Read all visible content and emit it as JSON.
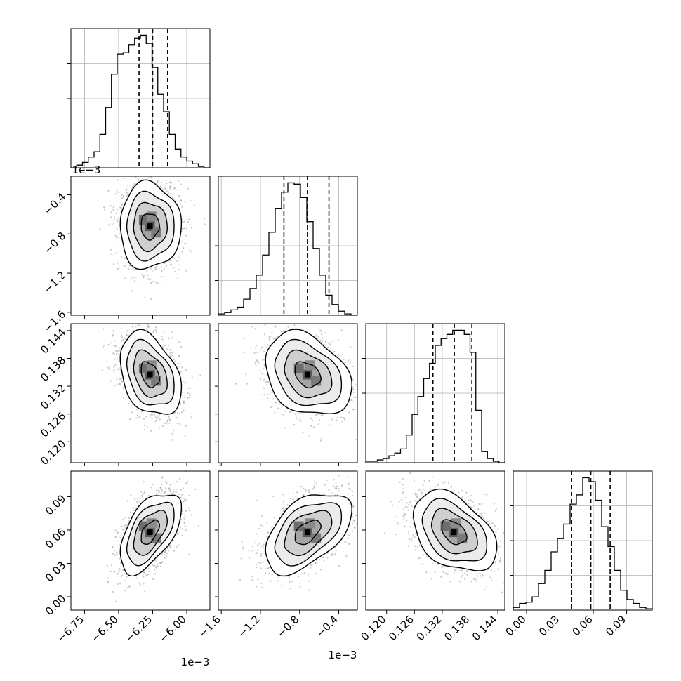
{
  "chart_data": {
    "type": "corner",
    "n_params": 4,
    "axis_titles": [],
    "offset_labels": {
      "x_col0": "1e−3",
      "x_col1": "1e−3",
      "y_row1": "1e−3"
    },
    "ticks": [
      {
        "values": [
          -0.00675,
          -0.0065,
          -0.00625,
          -0.006
        ],
        "labels": [
          "−6.75",
          "−6.50",
          "−6.25",
          "−6.00"
        ]
      },
      {
        "values": [
          -0.0016,
          -0.0012,
          -0.0008,
          -0.0004
        ],
        "labels": [
          "−1.6",
          "−1.2",
          "−0.8",
          "−0.4"
        ]
      },
      {
        "values": [
          0.12,
          0.126,
          0.132,
          0.138,
          0.144
        ],
        "labels": [
          "0.120",
          "0.126",
          "0.132",
          "0.138",
          "0.144"
        ]
      },
      {
        "values": [
          0.0,
          0.03,
          0.06,
          0.09
        ],
        "labels": [
          "0.00",
          "0.03",
          "0.06",
          "0.09"
        ]
      }
    ],
    "ranges": [
      [
        -0.00685,
        -0.00583
      ],
      [
        -0.00163,
        -0.00021
      ],
      [
        0.1155,
        0.1455
      ],
      [
        -0.012,
        0.113
      ]
    ],
    "histograms": [
      {
        "param": 0,
        "quantiles": [
          -0.00635,
          -0.00625,
          -0.00614
        ],
        "counts": [
          0,
          2,
          4,
          8,
          12,
          25,
          45,
          70,
          85,
          86,
          92,
          97,
          99,
          93,
          75,
          55,
          42,
          25,
          14,
          8,
          5,
          3,
          1,
          0
        ]
      },
      {
        "param": 1,
        "quantiles": [
          -0.00096,
          -0.00072,
          -0.0005
        ],
        "counts": [
          1,
          2,
          4,
          6,
          12,
          20,
          30,
          45,
          62,
          80,
          92,
          99,
          98,
          88,
          70,
          50,
          30,
          15,
          8,
          3,
          1,
          0
        ]
      },
      {
        "param": 2,
        "quantiles": [
          0.13,
          0.1346,
          0.1384
        ],
        "counts": [
          1,
          1,
          2,
          3,
          5,
          7,
          10,
          20,
          35,
          48,
          61,
          72,
          85,
          90,
          93,
          96,
          96,
          93,
          80,
          38,
          8,
          3,
          1,
          0
        ]
      },
      {
        "param": 3,
        "quantiles": [
          0.0405,
          0.0578,
          0.0752
        ],
        "counts": [
          2,
          5,
          6,
          10,
          20,
          30,
          44,
          54,
          65,
          80,
          87,
          100,
          97,
          83,
          63,
          48,
          30,
          15,
          8,
          5,
          2,
          1
        ]
      }
    ],
    "pairs": [
      {
        "x": 0,
        "y": 1,
        "mean": [
          -0.00627,
          -0.00072
        ],
        "sd": [
          0.000112,
          0.00022
        ],
        "rho": 0.0
      },
      {
        "x": 0,
        "y": 2,
        "mean": [
          -0.00627,
          0.1345
        ],
        "sd": [
          0.000112,
          0.0045
        ],
        "rho": -0.35
      },
      {
        "x": 1,
        "y": 2,
        "mean": [
          -0.00072,
          0.1345
        ],
        "sd": [
          0.00022,
          0.0045
        ],
        "rho": -0.3
      },
      {
        "x": 0,
        "y": 3,
        "mean": [
          -0.00627,
          0.058
        ],
        "sd": [
          0.000112,
          0.018
        ],
        "rho": 0.55
      },
      {
        "x": 1,
        "y": 3,
        "mean": [
          -0.00072,
          0.058
        ],
        "sd": [
          0.00022,
          0.018
        ],
        "rho": 0.5
      },
      {
        "x": 2,
        "y": 3,
        "mean": [
          0.1345,
          0.058
        ],
        "sd": [
          0.0045,
          0.018
        ],
        "rho": -0.4
      }
    ],
    "grid": true
  }
}
